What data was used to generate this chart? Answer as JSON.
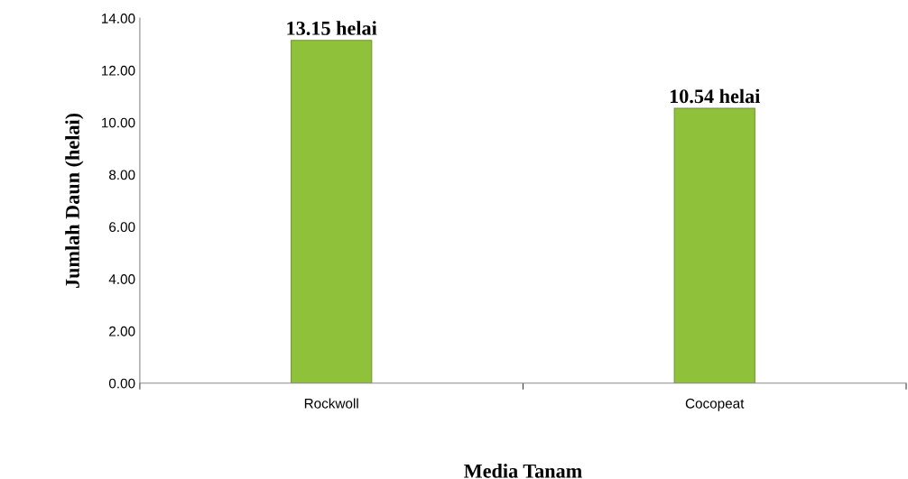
{
  "chart_data": {
    "type": "bar",
    "xlabel": "Media Tanam",
    "ylabel": "Jumlah Daun (helai)",
    "categories": [
      "Rockwoll",
      "Cocopeat"
    ],
    "values": [
      13.15,
      10.54
    ],
    "value_labels": [
      "13.15 helai",
      "10.54 helai"
    ],
    "color": "#8fc23a",
    "ylim": [
      0,
      14
    ],
    "yticks": [
      {
        "value": 0,
        "label": "0.00"
      },
      {
        "value": 2,
        "label": "2.00"
      },
      {
        "value": 4,
        "label": "4.00"
      },
      {
        "value": 6,
        "label": "6.00"
      },
      {
        "value": 8,
        "label": "8.00"
      },
      {
        "value": 10,
        "label": "10.00"
      },
      {
        "value": 12,
        "label": "12.00"
      },
      {
        "value": 14,
        "label": "14.00"
      }
    ],
    "grid": false,
    "legend": false
  }
}
